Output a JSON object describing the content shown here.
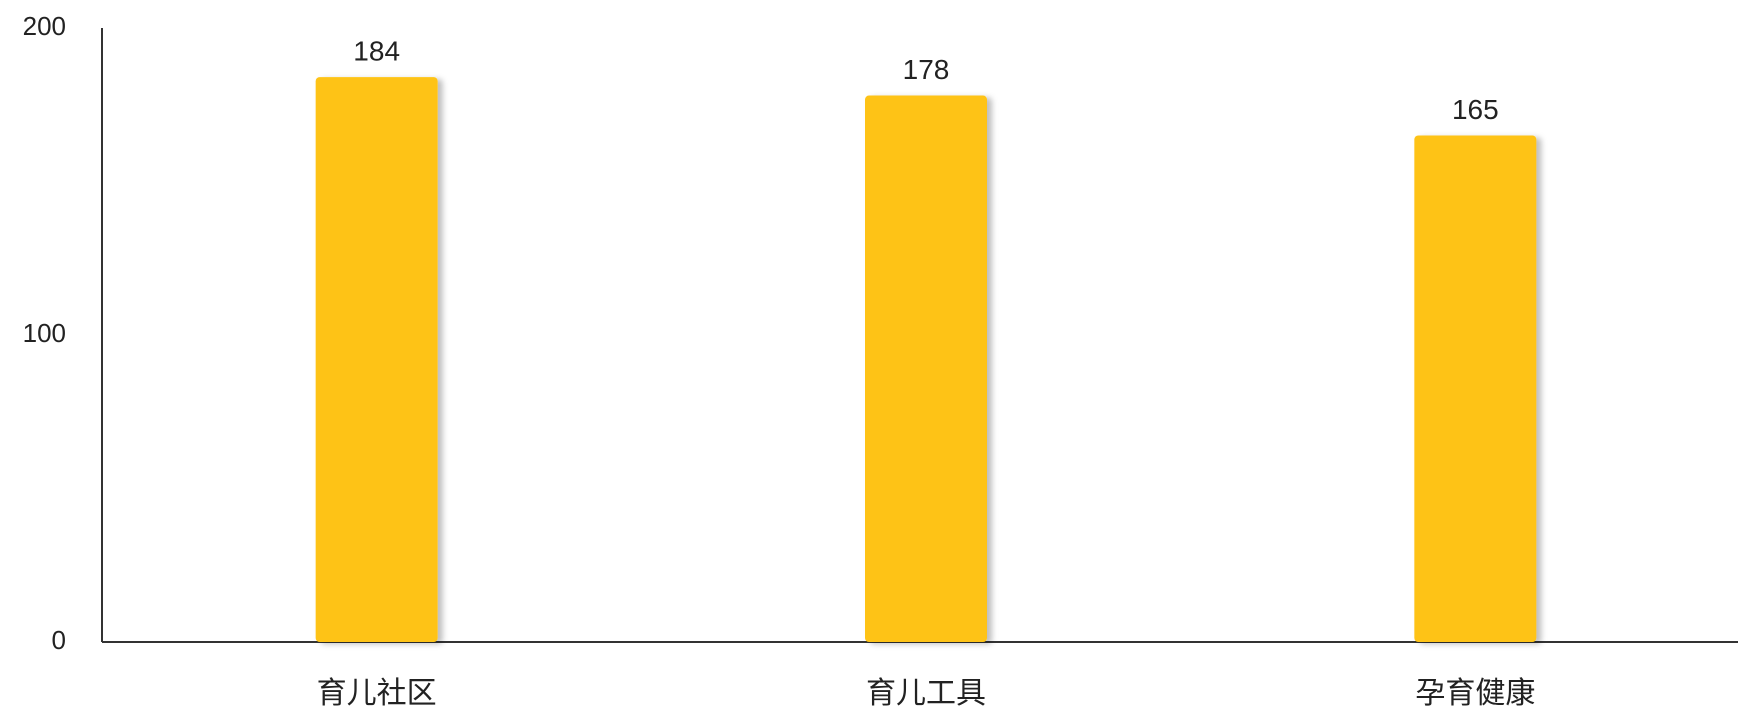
{
  "chart_data": {
    "type": "bar",
    "categories": [
      "育儿社区",
      "育儿工具",
      "孕育健康"
    ],
    "values": [
      184,
      178,
      165
    ],
    "color": "#fec314",
    "ylim": [
      0,
      200
    ],
    "yticks": [
      0,
      100,
      200
    ],
    "grid": false
  }
}
